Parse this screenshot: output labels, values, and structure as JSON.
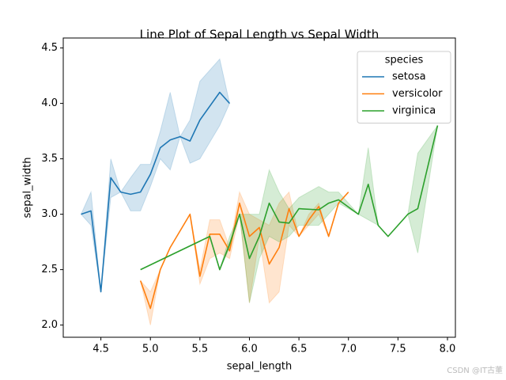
{
  "chart_data": {
    "type": "line",
    "title": "Line Plot of Sepal Length vs Sepal Width",
    "x_label": "sepal_length",
    "y_label": "sepal_width",
    "legend_title": "species",
    "legend": "upper right",
    "watermark": "CSDN @IT古董",
    "xlim": [
      4.12,
      8.08
    ],
    "ylim": [
      1.89,
      4.59
    ],
    "xticks": [
      4.5,
      {
        "value": 5,
        "label": "5.0"
      },
      5.5,
      {
        "value": 6,
        "label": "6.0"
      },
      6.5,
      {
        "value": 7,
        "label": "7.0"
      },
      7.5,
      {
        "value": 8,
        "label": "8.0"
      }
    ],
    "yticks": [
      {
        "value": 2,
        "label": "2.0"
      },
      2.5,
      {
        "value": 3,
        "label": "3.0"
      },
      3.5,
      {
        "value": 4,
        "label": "4.0"
      },
      4.5
    ],
    "series": [
      {
        "name": "setosa",
        "color": "#1f77b4",
        "x": [
          4.3,
          4.4,
          4.5,
          4.6,
          4.7,
          4.8,
          4.9,
          5.0,
          5.1,
          5.2,
          5.3,
          5.4,
          5.5,
          5.7,
          5.8
        ],
        "values": [
          3.0,
          3.03,
          2.3,
          3.33,
          3.2,
          3.18,
          3.2,
          3.36,
          3.6,
          3.67,
          3.7,
          3.66,
          3.85,
          4.1,
          4.0
        ],
        "ci_lower": [
          3.0,
          2.9,
          2.3,
          3.15,
          3.2,
          3.03,
          3.03,
          3.25,
          3.5,
          3.4,
          3.7,
          3.46,
          3.5,
          3.8,
          4.0
        ],
        "ci_upper": [
          3.0,
          3.2,
          2.3,
          3.5,
          3.2,
          3.33,
          3.45,
          3.45,
          3.75,
          4.1,
          3.7,
          3.85,
          4.2,
          4.4,
          4.0
        ]
      },
      {
        "name": "versicolor",
        "color": "#ff7f0e",
        "x": [
          4.9,
          5.0,
          5.1,
          5.2,
          5.4,
          5.5,
          5.6,
          5.7,
          5.8,
          5.9,
          6.0,
          6.1,
          6.2,
          6.3,
          6.4,
          6.5,
          6.6,
          6.7,
          6.8,
          6.9,
          7.0
        ],
        "values": [
          2.4,
          2.15,
          2.5,
          2.7,
          3.0,
          2.44,
          2.82,
          2.82,
          2.67,
          3.1,
          2.8,
          2.88,
          2.55,
          2.7,
          3.05,
          2.8,
          2.95,
          3.07,
          2.8,
          3.1,
          3.2
        ],
        "ci_lower": [
          2.4,
          2.0,
          2.5,
          2.7,
          3.0,
          2.37,
          2.6,
          2.65,
          2.6,
          3.0,
          2.2,
          2.8,
          2.2,
          2.3,
          2.9,
          2.8,
          2.9,
          3.0,
          2.8,
          3.1,
          3.2
        ],
        "ci_upper": [
          2.4,
          2.3,
          2.5,
          2.7,
          3.0,
          2.5,
          2.95,
          2.95,
          2.7,
          3.2,
          3.0,
          2.95,
          2.9,
          3.1,
          3.2,
          2.8,
          3.0,
          3.1,
          2.8,
          3.1,
          3.2
        ]
      },
      {
        "name": "virginica",
        "color": "#2ca02c",
        "x": [
          4.9,
          5.6,
          5.7,
          5.8,
          5.9,
          6.0,
          6.1,
          6.2,
          6.3,
          6.4,
          6.5,
          6.7,
          6.8,
          6.9,
          7.1,
          7.2,
          7.3,
          7.4,
          7.6,
          7.7,
          7.9
        ],
        "values": [
          2.5,
          2.8,
          2.5,
          2.73,
          3.0,
          2.6,
          2.8,
          3.1,
          2.93,
          2.92,
          3.05,
          3.04,
          3.1,
          3.13,
          3.0,
          3.27,
          2.9,
          2.8,
          3.0,
          3.05,
          3.8
        ],
        "ci_lower": [
          2.5,
          2.8,
          2.5,
          2.7,
          3.0,
          2.2,
          2.6,
          2.8,
          2.75,
          2.8,
          2.9,
          2.9,
          3.0,
          3.1,
          3.0,
          2.95,
          2.9,
          2.8,
          3.0,
          2.65,
          3.8
        ],
        "ci_upper": [
          2.5,
          2.8,
          2.5,
          2.8,
          3.0,
          3.0,
          3.0,
          3.4,
          3.2,
          3.05,
          3.15,
          3.25,
          3.2,
          3.2,
          3.0,
          3.6,
          2.9,
          2.8,
          3.0,
          3.55,
          3.8
        ]
      }
    ]
  }
}
